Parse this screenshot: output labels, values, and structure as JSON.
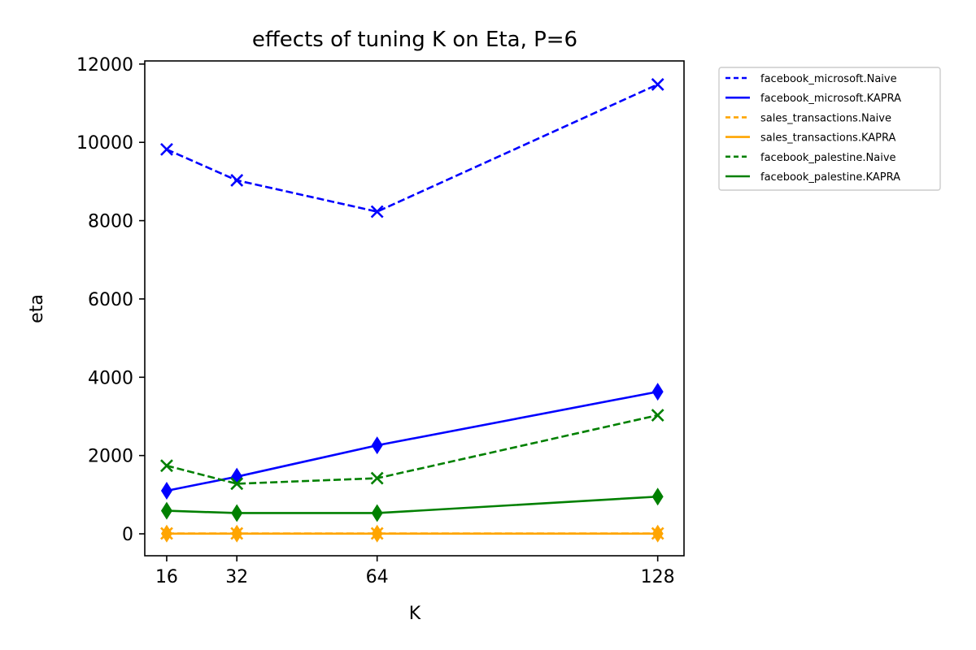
{
  "chart_data": {
    "type": "line",
    "title": "effects of tuning K on Eta, P=6",
    "xlabel": "K",
    "ylabel": "eta",
    "x": [
      16,
      32,
      64,
      128
    ],
    "xlim": [
      11,
      134
    ],
    "ylim": [
      -560,
      12080
    ],
    "xticks": [
      16,
      32,
      64,
      128
    ],
    "yticks": [
      0,
      2000,
      4000,
      6000,
      8000,
      10000,
      12000
    ],
    "grid": false,
    "legend_position": "outside-top-right",
    "series": [
      {
        "name": "facebook_microsoft.Naive",
        "color": "#0000ff",
        "dashed": true,
        "marker": "x",
        "values": [
          9820,
          9030,
          8230,
          11480
        ]
      },
      {
        "name": "facebook_microsoft.KAPRA",
        "color": "#0000ff",
        "dashed": false,
        "marker": "diamond",
        "values": [
          1100,
          1460,
          2260,
          3630
        ]
      },
      {
        "name": "sales_transactions.Naive",
        "color": "#ffa500",
        "dashed": true,
        "marker": "x",
        "values": [
          10,
          10,
          10,
          10
        ]
      },
      {
        "name": "sales_transactions.KAPRA",
        "color": "#ffa500",
        "dashed": false,
        "marker": "diamond",
        "values": [
          5,
          5,
          5,
          5
        ]
      },
      {
        "name": "facebook_palestine.Naive",
        "color": "#008000",
        "dashed": true,
        "marker": "x",
        "values": [
          1740,
          1280,
          1420,
          3030
        ]
      },
      {
        "name": "facebook_palestine.KAPRA",
        "color": "#008000",
        "dashed": false,
        "marker": "diamond",
        "values": [
          590,
          530,
          530,
          950
        ]
      }
    ]
  }
}
